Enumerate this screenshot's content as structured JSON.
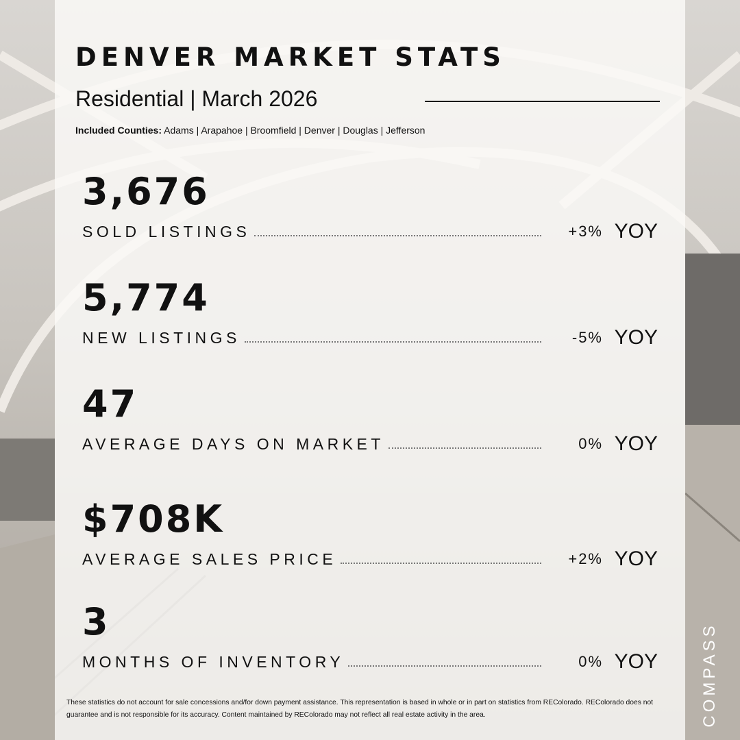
{
  "header": {
    "title": "DENVER MARKET STATS",
    "subtitle": "Residential |  March 2026",
    "counties_label": "Included Counties:",
    "counties": "Adams | Arapahoe | Broomfield | Denver | Douglas | Jefferson"
  },
  "stats": [
    {
      "value": "3,676",
      "label": "SOLD LISTINGS",
      "change": "+3%",
      "period": "YOY"
    },
    {
      "value": "5,774",
      "label": "NEW LISTINGS",
      "change": "-5%",
      "period": "YOY"
    },
    {
      "value": "47",
      "label": "AVERAGE DAYS ON MARKET",
      "change": "0%",
      "period": "YOY"
    },
    {
      "value": "$708K",
      "label": "AVERAGE SALES PRICE",
      "change": "+2%",
      "period": "YOY"
    },
    {
      "value": "3",
      "label": "MONTHS OF INVENTORY",
      "change": "0%",
      "period": "YOY"
    }
  ],
  "footer": {
    "disclaimer": "These statistics do not account for sale concessions and/for down payment assistance. This representation is based in whole or in part on statistics from REColorado. REColorado does not guarantee and is not responsible for its accuracy. Content maintained by REColorado may not reflect all real estate activity in the area."
  },
  "brand": "COMPASS"
}
